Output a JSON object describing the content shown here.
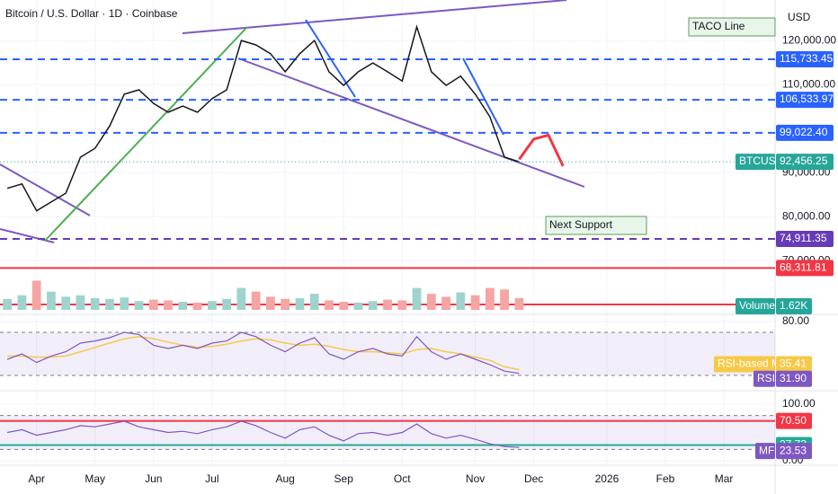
{
  "chart_data": {
    "type": "line",
    "title": "Bitcoin / U.S. Dollar · 1D · Coinbase",
    "currency": "USD",
    "categories": [
      null,
      null,
      "Apr",
      null,
      null,
      null,
      "May",
      null,
      null,
      null,
      "Jun",
      null,
      null,
      null,
      "Jul",
      null,
      null,
      null,
      null,
      "Aug",
      null,
      null,
      null,
      "Sep",
      null,
      null,
      null,
      "Oct",
      null,
      null,
      null,
      null,
      "Nov",
      null,
      null,
      null,
      "Dec",
      null,
      null,
      null,
      null,
      "2026",
      null,
      null,
      null,
      "Feb",
      null,
      null,
      null,
      "Mar",
      null,
      null,
      null
    ],
    "price": {
      "name": "BTCUSD",
      "color": "#26a69a",
      "value_label": "92,456.25",
      "values": [
        86400,
        87400,
        81300,
        83300,
        85300,
        93500,
        95500,
        100600,
        107800,
        108800,
        105700,
        103700,
        105100,
        103700,
        106800,
        108800,
        120000,
        119000,
        117000,
        112900,
        117000,
        120000,
        112900,
        109800,
        112900,
        114900,
        112900,
        110800,
        123100,
        112900,
        109800,
        111900,
        107800,
        102700,
        93500,
        92456.25,
        null,
        null,
        null,
        null,
        null,
        null,
        null,
        null,
        null,
        null,
        null,
        null,
        null,
        null,
        null,
        null,
        null
      ]
    },
    "projection": {
      "color": "#f23645",
      "values": [
        null,
        null,
        null,
        null,
        null,
        null,
        null,
        null,
        null,
        null,
        null,
        null,
        null,
        null,
        null,
        null,
        null,
        null,
        null,
        null,
        null,
        null,
        null,
        null,
        null,
        null,
        null,
        null,
        null,
        null,
        null,
        null,
        null,
        null,
        null,
        93000,
        97600,
        98500,
        91500,
        null,
        null,
        null,
        null,
        null,
        null,
        null,
        null,
        null,
        null,
        null,
        null,
        null,
        null
      ]
    },
    "ylim": [
      58800,
      129200
    ],
    "yticks": [
      {
        "value": 120000,
        "label": "120,000.00"
      },
      {
        "value": 110000,
        "label": "110,000.00"
      },
      {
        "value": 90000,
        "label": "90,000.00"
      },
      {
        "value": 80000,
        "label": "80,000.00"
      },
      {
        "value": 70000,
        "label": "70,000.00"
      }
    ],
    "levels": [
      {
        "value": 115733.45,
        "label": "115,733.45",
        "color": "#2962ff",
        "style": "dash"
      },
      {
        "value": 106533.97,
        "label": "106,533.97",
        "color": "#2962ff",
        "style": "dash"
      },
      {
        "value": 99022.4,
        "label": "99,022.40",
        "color": "#2962ff",
        "style": "dash"
      },
      {
        "value": 74911.35,
        "label": "74,911.35",
        "color": "#673ab7",
        "style": "dash"
      },
      {
        "value": 68311.81,
        "label": "68,311.81",
        "color": "#f23645",
        "style": "solid"
      }
    ],
    "annotations": [
      "TACO Line",
      "Next Support"
    ],
    "volume": {
      "name": "Volume",
      "value_label": "1.62K",
      "ylim": [
        0,
        8
      ],
      "up_color": "#9fd3cd",
      "down_color": "#f5a5a3",
      "values": [
        1.5,
        2,
        4,
        2.5,
        1.8,
        2,
        1.6,
        1.5,
        1.7,
        1.2,
        1.4,
        1.3,
        1.1,
        1,
        1.2,
        1.5,
        3,
        2.5,
        1.8,
        1.5,
        1.6,
        2.2,
        1.3,
        1.1,
        1,
        1.2,
        1.4,
        1.3,
        3,
        2.2,
        1.8,
        2.4,
        2,
        3,
        2.8,
        1.62
      ]
    },
    "rsi": {
      "name": "RSI",
      "color": "#7e57c2",
      "value_label": "31.90",
      "ylim": [
        18.3,
        86.7
      ],
      "band": [
        30,
        70
      ],
      "yticks": [
        {
          "value": 80,
          "label": "80.00"
        }
      ],
      "values": [
        45,
        50,
        42,
        48,
        52,
        60,
        62,
        65,
        70,
        68,
        58,
        55,
        58,
        55,
        60,
        62,
        70,
        66,
        58,
        52,
        60,
        65,
        50,
        45,
        52,
        55,
        50,
        48,
        66,
        52,
        45,
        50,
        45,
        40,
        34,
        31.9
      ],
      "ma": {
        "name": "RSI-based MA",
        "color": "#f7c948",
        "values": [
          48,
          48,
          47,
          47,
          48,
          52,
          56,
          60,
          64,
          66,
          64,
          61,
          58,
          56,
          57,
          59,
          62,
          64,
          63,
          60,
          58,
          59,
          57,
          54,
          52,
          52,
          51,
          50,
          54,
          55,
          52,
          50,
          47,
          44,
          38,
          35.41
        ]
      }
    },
    "mf": {
      "name": "MF",
      "color": "#7e57c2",
      "ylim": [
        -3.2,
        115.9
      ],
      "band": [
        20,
        80
      ],
      "yticks": [
        {
          "value": 100,
          "label": "100.00"
        },
        {
          "value": 0,
          "label": "0.00"
        }
      ],
      "levels": [
        {
          "value": 70.5,
          "label": "70.50",
          "color": "#f23645"
        },
        {
          "value": 27.73,
          "label": "27.73",
          "color": "#22ab94"
        }
      ],
      "values": [
        50,
        55,
        45,
        50,
        55,
        62,
        60,
        65,
        70,
        60,
        55,
        50,
        52,
        48,
        55,
        60,
        70,
        62,
        50,
        40,
        55,
        60,
        45,
        35,
        48,
        50,
        45,
        50,
        65,
        48,
        40,
        45,
        38,
        30,
        25,
        23.53
      ]
    }
  }
}
